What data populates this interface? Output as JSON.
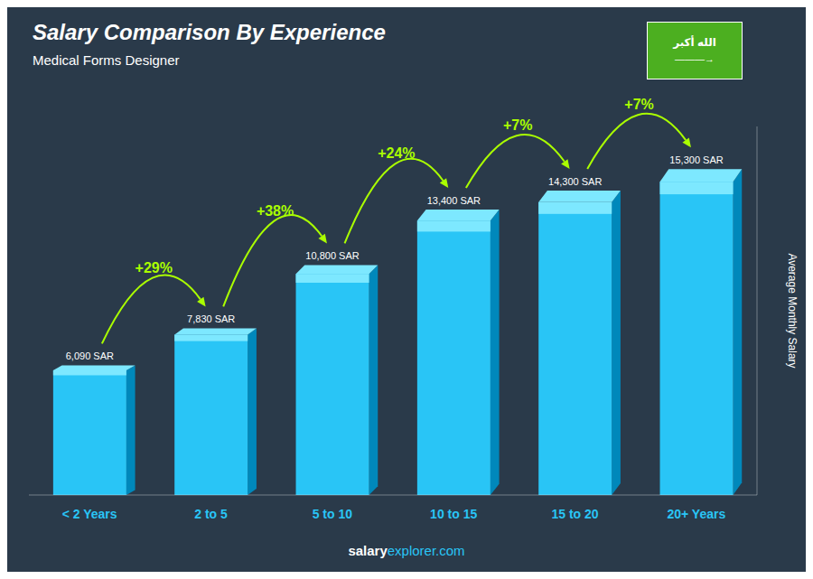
{
  "chart_data": {
    "type": "bar",
    "title": "Salary Comparison By Experience",
    "subtitle": "Medical Forms Designer",
    "categories": [
      "< 2 Years",
      "2 to 5",
      "5 to 10",
      "10 to 15",
      "15 to 20",
      "20+ Years"
    ],
    "values": [
      6090,
      7830,
      10800,
      13400,
      14300,
      15300
    ],
    "value_labels": [
      "6,090 SAR",
      "7,830 SAR",
      "10,800 SAR",
      "13,400 SAR",
      "14,300 SAR",
      "15,300 SAR"
    ],
    "data_labels": true,
    "color": "#29c5f6",
    "ylabel": "Average Monthly Salary",
    "ylim": [
      0,
      18000
    ],
    "tick_labels": "x",
    "annotations": [
      {
        "text": "+29%",
        "from": "< 2 Years",
        "to": "2 to 5"
      },
      {
        "text": "+38%",
        "from": "2 to 5",
        "to": "5 to 10"
      },
      {
        "text": "+24%",
        "from": "5 to 10",
        "to": "10 to 15"
      },
      {
        "text": "+7%",
        "from": "10 to 15",
        "to": "15 to 20"
      },
      {
        "text": "+7%",
        "from": "15 to 20",
        "to": "20+ Years"
      }
    ],
    "footer": [
      "salary",
      "explorer.com"
    ],
    "flag": [
      "الله أكبر",
      "———→"
    ]
  }
}
